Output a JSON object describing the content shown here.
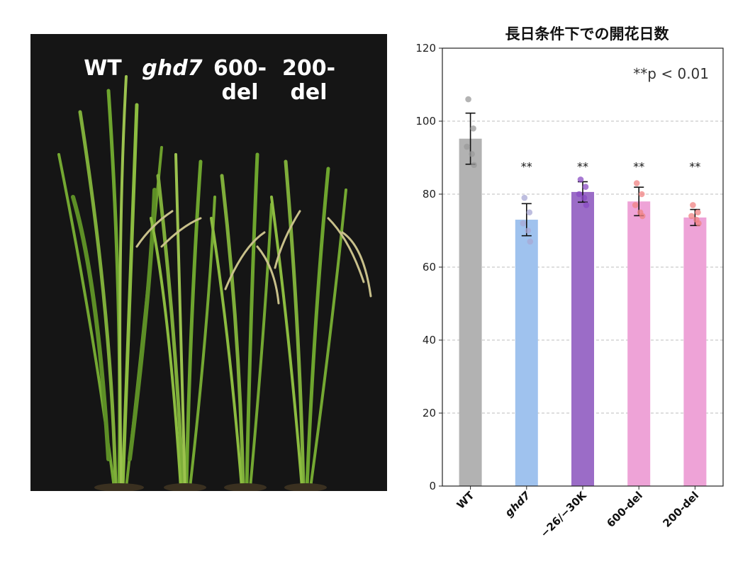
{
  "photo": {
    "labels": [
      {
        "line1": "WT",
        "line2": "",
        "italic": false
      },
      {
        "line1": "ghd7",
        "line2": "",
        "italic": true
      },
      {
        "line1": "600-",
        "line2": "del",
        "italic": false
      },
      {
        "line1": "200-",
        "line2": "del",
        "italic": false
      }
    ]
  },
  "chart_data": {
    "type": "bar",
    "title": "長日条件下での開花日数",
    "annotation": "**p < 0.01",
    "xlabel": "",
    "ylabel": "",
    "ylim": [
      0,
      120
    ],
    "yticks": [
      0,
      20,
      40,
      60,
      80,
      100,
      120
    ],
    "grid": "horizontal-dashed",
    "categories": [
      "WT",
      "ghd7",
      "−26/−30K",
      "600-del",
      "200-del"
    ],
    "italic_categories": [
      "ghd7"
    ],
    "values": [
      95.2,
      73.0,
      80.6,
      78.0,
      73.6
    ],
    "errors": [
      7.0,
      4.4,
      2.8,
      3.9,
      2.2
    ],
    "significance": [
      "",
      "**",
      "**",
      "**",
      "**"
    ],
    "colors": {
      "bars": [
        "#b2b2b2",
        "#9fc2ee",
        "#9b6cc7",
        "#eea3d7",
        "#eea3d7"
      ],
      "points": [
        "#9a9a9a",
        "#a8a8d4",
        "#8a4cc3",
        "#f08383",
        "#f08383"
      ]
    },
    "points": [
      [
        106,
        98,
        93,
        91,
        88
      ],
      [
        79,
        75,
        72,
        70,
        67
      ],
      [
        84,
        82,
        80,
        79,
        77
      ],
      [
        83,
        80,
        77,
        75,
        74
      ],
      [
        77,
        75,
        74,
        73,
        72
      ]
    ]
  }
}
